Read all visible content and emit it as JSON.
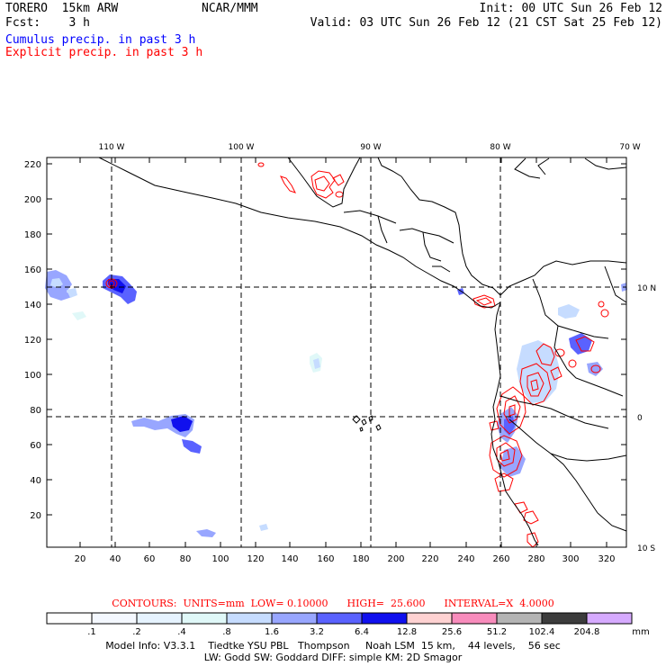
{
  "header": {
    "model": "TORERO  15km ARW",
    "center": "NCAR/MMM",
    "init": "Init: 00 UTC Sun 26 Feb 12",
    "fcst": "Fcst:    3 h",
    "valid": "Valid: 03 UTC Sun 26 Feb 12 (21 CST Sat 25 Feb 12)"
  },
  "legend": {
    "cumulus": "Cumulus precip. in past 3 h",
    "explicit": "Explicit precip. in past 3 h"
  },
  "colors": {
    "cumulus": "#0000ff",
    "explicit": "#ff0000",
    "coast": "#000000"
  },
  "map": {
    "lon_labels": [
      "110 W",
      "100 W",
      "90 W",
      "80 W",
      "70 W"
    ],
    "lat_labels": [
      "10 N",
      "0",
      "10 S"
    ],
    "y_ticks": [
      "220",
      "200",
      "180",
      "160",
      "140",
      "120",
      "100",
      "80",
      "60",
      "40",
      "20"
    ],
    "x_ticks": [
      "20",
      "40",
      "60",
      "80",
      "100",
      "120",
      "140",
      "160",
      "180",
      "200",
      "220",
      "240",
      "260",
      "280",
      "300",
      "320"
    ]
  },
  "contour_info": "CONTOURS:  UNITS=mm  LOW= 0.10000      HIGH=  25.600      INTERVAL=X  4.0000",
  "colorbar": {
    "labels": [
      ".1",
      ".2",
      ".4",
      ".8",
      "1.6",
      "3.2",
      "6.4",
      "12.8",
      "25.6",
      "51.2",
      "102.4",
      "204.8"
    ],
    "unit": "mm",
    "colors": [
      "#ffffff",
      "#f4f8ff",
      "#e6f3ff",
      "#e0f8f8",
      "#c6dcff",
      "#98a6ff",
      "#5a62ff",
      "#1010ee",
      "#ffd2d2",
      "#f88cbc",
      "#b4b4b4",
      "#3c3c3c",
      "#d6aaff"
    ]
  },
  "model_info_1": "Model Info: V3.3.1    Tiedtke YSU PBL   Thompson     Noah LSM  15 km,    44 levels,    56 sec",
  "model_info_2": "LW: Godd SW: Goddard DIFF: simple KM: 2D Smagor"
}
